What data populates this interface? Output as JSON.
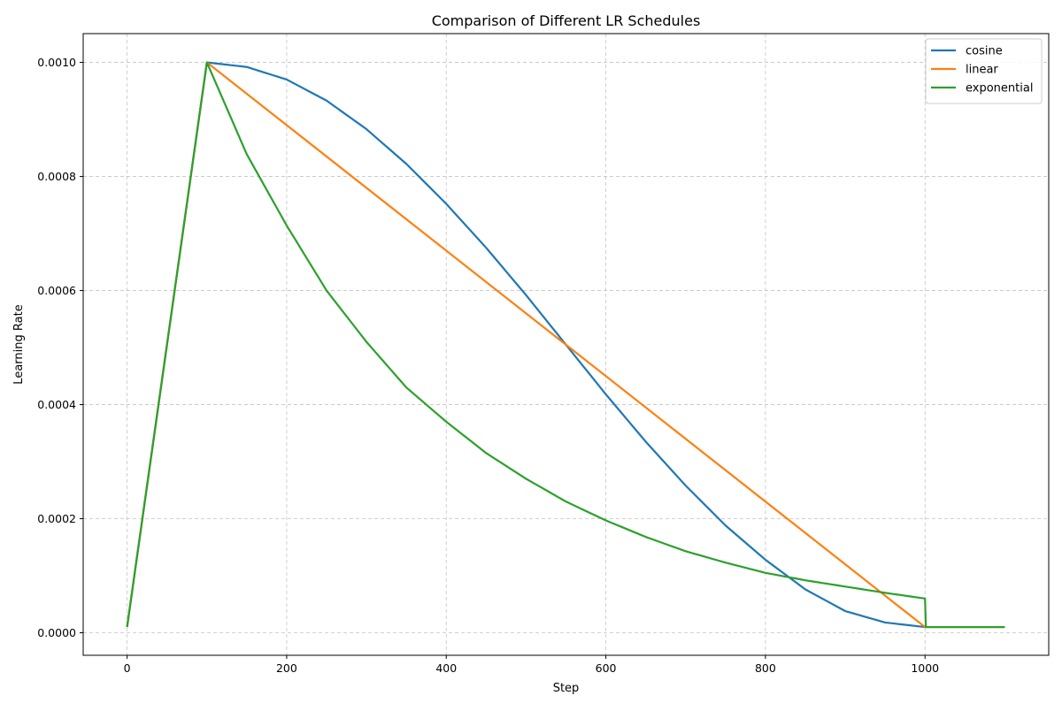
{
  "chart_data": {
    "type": "line",
    "title": "Comparison of Different LR Schedules",
    "xlabel": "Step",
    "ylabel": "Learning Rate",
    "xlim": [
      -55,
      1155
    ],
    "ylim": [
      -3.95e-05,
      0.0010505
    ],
    "xticks": [
      0,
      200,
      400,
      600,
      800,
      1000
    ],
    "xtick_labels": [
      "0",
      "200",
      "400",
      "600",
      "800",
      "1000"
    ],
    "yticks": [
      0.0,
      0.0002,
      0.0004,
      0.0006,
      0.0008,
      0.001
    ],
    "ytick_labels": [
      "0.0000",
      "0.0002",
      "0.0004",
      "0.0006",
      "0.0008",
      "0.0010"
    ],
    "grid": true,
    "legend_position": "top-right",
    "series": [
      {
        "name": "cosine",
        "color": "#1f77b4",
        "x": [
          0,
          100,
          150,
          200,
          250,
          300,
          350,
          400,
          450,
          500,
          550,
          600,
          650,
          700,
          750,
          800,
          850,
          900,
          950,
          1000,
          1100
        ],
        "y": [
          1e-05,
          0.001,
          0.000992,
          0.00097,
          0.000933,
          0.000883,
          0.000822,
          0.000752,
          0.000675,
          0.000592,
          0.000505,
          0.000418,
          0.000335,
          0.000258,
          0.000188,
          0.000128,
          7.6e-05,
          3.8e-05,
          1.8e-05,
          1e-05,
          1e-05
        ]
      },
      {
        "name": "linear",
        "color": "#ff7f0e",
        "x": [
          0,
          100,
          1000,
          1100
        ],
        "y": [
          1e-05,
          0.001,
          1e-05,
          1e-05
        ]
      },
      {
        "name": "exponential",
        "color": "#2ca02c",
        "x": [
          0,
          100,
          150,
          200,
          250,
          300,
          350,
          400,
          450,
          500,
          550,
          600,
          650,
          700,
          750,
          800,
          850,
          900,
          950,
          1000,
          1001,
          1100
        ],
        "y": [
          1e-05,
          0.001,
          0.000839,
          0.000714,
          0.0006,
          0.00051,
          0.00043,
          0.00037,
          0.000315,
          0.00027,
          0.00023,
          0.000197,
          0.000168,
          0.000143,
          0.000123,
          0.000105,
          9.2e-05,
          8.1e-05,
          7e-05,
          6e-05,
          1e-05,
          1e-05
        ]
      }
    ]
  }
}
